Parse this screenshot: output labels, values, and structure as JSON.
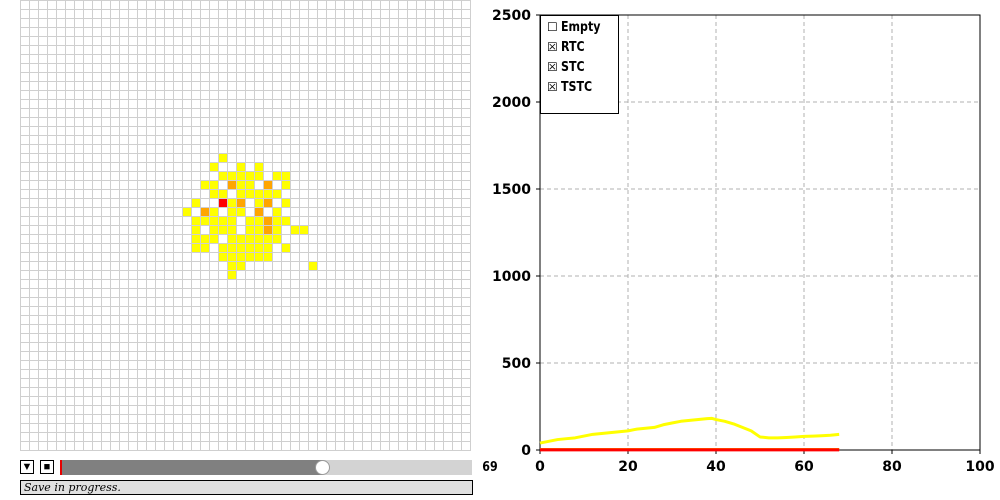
{
  "colors": {
    "level1": "#ffff00",
    "level2": "#ffa500",
    "level3": "#ff0000",
    "progress_fill": "#808080",
    "progress_track": "#d3d3d3"
  },
  "grid": {
    "columns": 50,
    "rows": 50,
    "cells": [
      [
        22,
        17,
        1
      ],
      [
        21,
        18,
        1
      ],
      [
        24,
        18,
        1
      ],
      [
        26,
        18,
        1
      ],
      [
        22,
        19,
        1
      ],
      [
        23,
        19,
        1
      ],
      [
        24,
        19,
        1
      ],
      [
        25,
        19,
        1
      ],
      [
        26,
        19,
        1
      ],
      [
        28,
        19,
        1
      ],
      [
        29,
        19,
        1
      ],
      [
        20,
        20,
        1
      ],
      [
        21,
        20,
        1
      ],
      [
        23,
        20,
        2
      ],
      [
        24,
        20,
        1
      ],
      [
        25,
        20,
        1
      ],
      [
        27,
        20,
        2
      ],
      [
        29,
        20,
        1
      ],
      [
        21,
        21,
        1
      ],
      [
        22,
        21,
        1
      ],
      [
        24,
        21,
        1
      ],
      [
        25,
        21,
        1
      ],
      [
        26,
        21,
        1
      ],
      [
        27,
        21,
        1
      ],
      [
        28,
        21,
        1
      ],
      [
        19,
        22,
        1
      ],
      [
        22,
        22,
        3
      ],
      [
        23,
        22,
        1
      ],
      [
        24,
        22,
        2
      ],
      [
        26,
        22,
        1
      ],
      [
        27,
        22,
        2
      ],
      [
        29,
        22,
        1
      ],
      [
        18,
        23,
        1
      ],
      [
        20,
        23,
        2
      ],
      [
        21,
        23,
        1
      ],
      [
        23,
        23,
        1
      ],
      [
        24,
        23,
        1
      ],
      [
        26,
        23,
        2
      ],
      [
        28,
        23,
        1
      ],
      [
        19,
        24,
        1
      ],
      [
        20,
        24,
        1
      ],
      [
        21,
        24,
        1
      ],
      [
        22,
        24,
        1
      ],
      [
        23,
        24,
        1
      ],
      [
        25,
        24,
        1
      ],
      [
        26,
        24,
        1
      ],
      [
        27,
        24,
        2
      ],
      [
        28,
        24,
        1
      ],
      [
        29,
        24,
        1
      ],
      [
        19,
        25,
        1
      ],
      [
        21,
        25,
        1
      ],
      [
        22,
        25,
        1
      ],
      [
        23,
        25,
        1
      ],
      [
        25,
        25,
        1
      ],
      [
        26,
        25,
        1
      ],
      [
        27,
        25,
        2
      ],
      [
        28,
        25,
        1
      ],
      [
        30,
        25,
        1
      ],
      [
        31,
        25,
        1
      ],
      [
        19,
        26,
        1
      ],
      [
        20,
        26,
        1
      ],
      [
        21,
        26,
        1
      ],
      [
        23,
        26,
        1
      ],
      [
        24,
        26,
        1
      ],
      [
        25,
        26,
        1
      ],
      [
        26,
        26,
        1
      ],
      [
        27,
        26,
        1
      ],
      [
        28,
        26,
        1
      ],
      [
        19,
        27,
        1
      ],
      [
        20,
        27,
        1
      ],
      [
        22,
        27,
        1
      ],
      [
        23,
        27,
        1
      ],
      [
        24,
        27,
        1
      ],
      [
        25,
        27,
        1
      ],
      [
        26,
        27,
        1
      ],
      [
        27,
        27,
        1
      ],
      [
        29,
        27,
        1
      ],
      [
        22,
        28,
        1
      ],
      [
        23,
        28,
        1
      ],
      [
        24,
        28,
        1
      ],
      [
        25,
        28,
        1
      ],
      [
        26,
        28,
        1
      ],
      [
        27,
        28,
        1
      ],
      [
        23,
        29,
        1
      ],
      [
        24,
        29,
        1
      ],
      [
        32,
        29,
        1
      ],
      [
        23,
        30,
        1
      ]
    ]
  },
  "controls": {
    "step_icon": "triangle-down-icon",
    "step_glyph": "▼",
    "stop_icon": "stop-square-icon",
    "stop_glyph": "■",
    "progress_fraction": 0.69,
    "step_value": "69"
  },
  "status": {
    "text": "Save in progress."
  },
  "legend": {
    "items": [
      {
        "label": "Empty",
        "checked": false,
        "glyph": "☐"
      },
      {
        "label": "RTC",
        "checked": true,
        "glyph": "☒"
      },
      {
        "label": "STC",
        "checked": true,
        "glyph": "☒"
      },
      {
        "label": "TSTC",
        "checked": true,
        "glyph": "☒"
      }
    ]
  },
  "chart_data": {
    "type": "line",
    "xlim": [
      0,
      100
    ],
    "ylim": [
      0,
      2500
    ],
    "x_ticks": [
      "0",
      "20",
      "40",
      "60",
      "80",
      "100"
    ],
    "y_ticks": [
      "0",
      "500",
      "1000",
      "1500",
      "2000",
      "2500"
    ],
    "grid": true,
    "legend_placement": "top-left",
    "series": [
      {
        "name": "RTC",
        "color": "#ffff00",
        "x": [
          0,
          2,
          4,
          6,
          8,
          10,
          12,
          14,
          16,
          18,
          20,
          22,
          24,
          26,
          28,
          30,
          32,
          34,
          36,
          38,
          39,
          40,
          42,
          44,
          46,
          48,
          50,
          52,
          54,
          56,
          58,
          60,
          62,
          64,
          66,
          68
        ],
        "y": [
          40,
          50,
          60,
          65,
          70,
          80,
          90,
          95,
          100,
          105,
          110,
          120,
          125,
          130,
          145,
          155,
          165,
          170,
          175,
          180,
          182,
          175,
          165,
          150,
          130,
          110,
          75,
          70,
          70,
          72,
          75,
          78,
          80,
          82,
          85,
          90
        ]
      },
      {
        "name": "STC",
        "color": "#ffa500",
        "x": [
          0,
          68
        ],
        "y": [
          3,
          3
        ]
      },
      {
        "name": "TSTC",
        "color": "#ff0000",
        "x": [
          0,
          68
        ],
        "y": [
          1,
          1
        ]
      }
    ]
  }
}
